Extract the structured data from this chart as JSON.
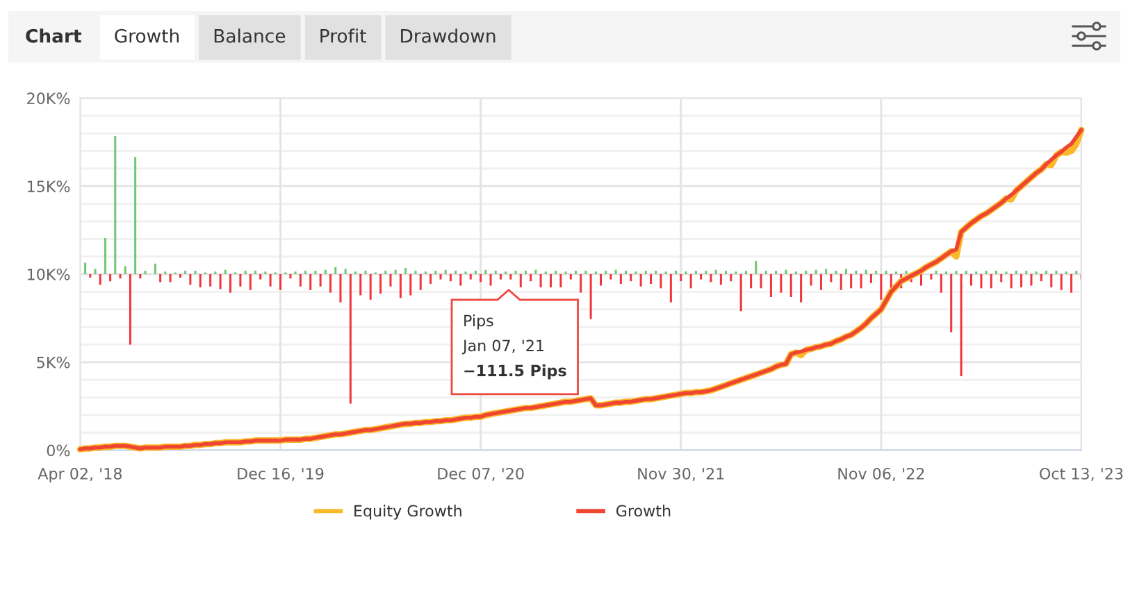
{
  "chart_data": {
    "type": "line",
    "categories": [
      "Apr 02, '18",
      null,
      null,
      null,
      null,
      null,
      null,
      null,
      null,
      null,
      null,
      null,
      null,
      null,
      null,
      null,
      null,
      null,
      null,
      null,
      null,
      null,
      null,
      null,
      null,
      null,
      null,
      null,
      null,
      null,
      null,
      null,
      null,
      null,
      null,
      null,
      null,
      null,
      null,
      null,
      "Dec 16, '19",
      null,
      null,
      null,
      null,
      null,
      null,
      null,
      null,
      null,
      null,
      null,
      null,
      null,
      null,
      null,
      null,
      null,
      null,
      null,
      null,
      null,
      null,
      null,
      null,
      null,
      null,
      null,
      null,
      null,
      null,
      null,
      null,
      null,
      null,
      null,
      null,
      null,
      null,
      null,
      "Dec 07, '20",
      null,
      null,
      null,
      null,
      null,
      null,
      null,
      null,
      null,
      null,
      null,
      null,
      null,
      null,
      null,
      null,
      null,
      null,
      null,
      null,
      null,
      null,
      null,
      null,
      null,
      null,
      null,
      null,
      null,
      null,
      null,
      null,
      null,
      null,
      null,
      null,
      null,
      null,
      null,
      "Nov 30, '21",
      null,
      null,
      null,
      null,
      null,
      null,
      null,
      null,
      null,
      null,
      null,
      null,
      null,
      null,
      null,
      null,
      null,
      null,
      null,
      null,
      null,
      null,
      null,
      null,
      null,
      null,
      null,
      null,
      null,
      null,
      null,
      null,
      null,
      null,
      null,
      null,
      null,
      null,
      null,
      "Nov 06, '22",
      null,
      null,
      null,
      null,
      null,
      null,
      null,
      null,
      null,
      null,
      null,
      null,
      null,
      null,
      null,
      null,
      null,
      null,
      null,
      null,
      null,
      null,
      null,
      null,
      null,
      null,
      null,
      null,
      null,
      null,
      null,
      null,
      null,
      null,
      null,
      null,
      null,
      null,
      null,
      "Oct 13, '23"
    ],
    "ylim": [
      0,
      20000
    ],
    "yticks": [
      {
        "value": 0,
        "label": "0%"
      },
      {
        "value": 1000,
        "label": null
      },
      {
        "value": 2000,
        "label": null
      },
      {
        "value": 3000,
        "label": null
      },
      {
        "value": 4000,
        "label": null
      },
      {
        "value": 5000,
        "label": "5K%"
      },
      {
        "value": 6000,
        "label": null
      },
      {
        "value": 7000,
        "label": null
      },
      {
        "value": 8000,
        "label": null
      },
      {
        "value": 9000,
        "label": null
      },
      {
        "value": 10000,
        "label": "10K%"
      },
      {
        "value": 11000,
        "label": null
      },
      {
        "value": 12000,
        "label": null
      },
      {
        "value": 13000,
        "label": null
      },
      {
        "value": 14000,
        "label": null
      },
      {
        "value": 15000,
        "label": "15K%"
      },
      {
        "value": 16000,
        "label": null
      },
      {
        "value": 17000,
        "label": null
      },
      {
        "value": 18000,
        "label": null
      },
      {
        "value": 19000,
        "label": null
      },
      {
        "value": 20000,
        "label": "20K%"
      }
    ],
    "grid": true,
    "legend": "bottom",
    "annotations": [
      "Chart",
      "Growth",
      "Balance",
      "Profit",
      "Drawdown",
      {
        "text": "Pips\nJan 07, '21\n−111.5 Pips",
        "y": 9100
      }
    ],
    "series": [
      {
        "name": "Equity Growth",
        "color": "#fbb829",
        "values": [
          50,
          100,
          100,
          150,
          150,
          200,
          200,
          250,
          250,
          250,
          200,
          150,
          100,
          150,
          150,
          150,
          150,
          200,
          200,
          200,
          200,
          250,
          250,
          300,
          300,
          350,
          350,
          400,
          400,
          450,
          450,
          450,
          450,
          500,
          500,
          550,
          550,
          550,
          550,
          550,
          550,
          600,
          600,
          600,
          600,
          650,
          650,
          700,
          750,
          800,
          850,
          900,
          900,
          950,
          1000,
          1050,
          1100,
          1150,
          1150,
          1200,
          1250,
          1300,
          1350,
          1400,
          1450,
          1500,
          1500,
          1550,
          1550,
          1600,
          1600,
          1650,
          1650,
          1700,
          1700,
          1750,
          1800,
          1850,
          1850,
          1900,
          1900,
          2000,
          2050,
          2100,
          2150,
          2200,
          2250,
          2300,
          2350,
          2400,
          2400,
          2450,
          2500,
          2550,
          2600,
          2650,
          2700,
          2750,
          2750,
          2800,
          2850,
          2900,
          2950,
          2550,
          2550,
          2600,
          2650,
          2700,
          2700,
          2750,
          2750,
          2800,
          2850,
          2900,
          2900,
          2950,
          3000,
          3050,
          3100,
          3150,
          3200,
          3250,
          3250,
          3300,
          3300,
          3350,
          3400,
          3500,
          3600,
          3700,
          3800,
          3900,
          4000,
          4100,
          4200,
          4300,
          4400,
          4500,
          4600,
          4750,
          4850,
          4900,
          5450,
          5550,
          5400,
          5700,
          5750,
          5850,
          5900,
          6000,
          6050,
          6200,
          6300,
          6450,
          6550,
          6750,
          6950,
          7200,
          7500,
          7750,
          8000,
          8500,
          9000,
          9300,
          9600,
          9750,
          9900,
          10050,
          10200,
          10400,
          10550,
          10700,
          10900,
          11100,
          11300,
          11000,
          12400,
          12650,
          12900,
          13100,
          13300,
          13450,
          13650,
          13850,
          14050,
          14300,
          14250,
          14750,
          15000,
          15250,
          15500,
          15750,
          15950,
          16250,
          16200,
          16750,
          16950,
          16900,
          17000,
          17400,
          18200
        ]
      },
      {
        "name": "Growth",
        "color": "#ef4631",
        "values": [
          50,
          100,
          100,
          150,
          150,
          200,
          200,
          250,
          250,
          250,
          200,
          150,
          100,
          150,
          150,
          150,
          150,
          200,
          200,
          200,
          200,
          250,
          250,
          300,
          300,
          350,
          350,
          400,
          400,
          450,
          450,
          450,
          450,
          500,
          500,
          550,
          550,
          550,
          550,
          550,
          550,
          600,
          600,
          600,
          600,
          650,
          650,
          700,
          750,
          800,
          850,
          900,
          900,
          950,
          1000,
          1050,
          1100,
          1150,
          1150,
          1200,
          1250,
          1300,
          1350,
          1400,
          1450,
          1500,
          1500,
          1550,
          1550,
          1600,
          1600,
          1650,
          1650,
          1700,
          1700,
          1750,
          1800,
          1850,
          1850,
          1900,
          1900,
          2000,
          2050,
          2100,
          2150,
          2200,
          2250,
          2300,
          2350,
          2400,
          2400,
          2450,
          2500,
          2550,
          2600,
          2650,
          2700,
          2750,
          2750,
          2800,
          2850,
          2900,
          2950,
          2550,
          2550,
          2600,
          2650,
          2700,
          2700,
          2750,
          2750,
          2800,
          2850,
          2900,
          2900,
          2950,
          3000,
          3050,
          3100,
          3150,
          3200,
          3250,
          3250,
          3300,
          3300,
          3350,
          3400,
          3500,
          3600,
          3700,
          3800,
          3900,
          4000,
          4100,
          4200,
          4300,
          4400,
          4500,
          4600,
          4750,
          4850,
          4900,
          5450,
          5550,
          5600,
          5700,
          5750,
          5850,
          5900,
          6000,
          6050,
          6200,
          6300,
          6450,
          6550,
          6750,
          6950,
          7200,
          7500,
          7750,
          8000,
          8500,
          9000,
          9300,
          9600,
          9750,
          9900,
          10050,
          10200,
          10400,
          10550,
          10700,
          10900,
          11100,
          11300,
          11400,
          12400,
          12650,
          12900,
          13100,
          13300,
          13450,
          13650,
          13850,
          14050,
          14300,
          14500,
          14750,
          15000,
          15250,
          15500,
          15750,
          15950,
          16250,
          16500,
          16750,
          16950,
          17200,
          17400,
          17800,
          18200
        ]
      },
      {
        "type": "bar",
        "base": [
          null,
          10000,
          10000,
          10000,
          10000,
          10000,
          10000,
          10000,
          10000,
          10000,
          10000,
          10000,
          10000,
          10000,
          null,
          10000,
          10000,
          10000,
          10000,
          10000,
          10000,
          10000,
          10000,
          10000,
          10000,
          10000,
          10000,
          10000,
          10000,
          10000,
          10000,
          10000,
          10000,
          10000,
          10000,
          10000,
          10000,
          10000,
          10000,
          10000,
          10000,
          10000,
          10000,
          10000,
          10000,
          10000,
          10000,
          10000,
          10000,
          10000,
          10000,
          10000,
          10000,
          10000,
          10000,
          10000,
          10000,
          10000,
          10000,
          10000,
          10000,
          10000,
          10000,
          10000,
          10000,
          10000,
          10000,
          10000,
          10000,
          10000,
          10000,
          10000,
          10000,
          10000,
          10000,
          10000,
          10000,
          10000,
          10000,
          10000,
          10000,
          10000,
          10000,
          10000,
          10000,
          10000,
          10000,
          10000,
          10000,
          10000,
          10000,
          10000,
          10000,
          10000,
          10000,
          10000,
          10000,
          10000,
          10000,
          10000,
          10000,
          10000,
          10000,
          10000,
          10000,
          10000,
          10000,
          10000,
          10000,
          10000,
          10000,
          10000,
          10000,
          10000,
          10000,
          10000,
          10000,
          10000,
          10000,
          10000,
          10000,
          10000,
          10000,
          10000,
          10000,
          10000,
          10000,
          10000,
          10000,
          10000,
          10000,
          10000,
          10000,
          10000,
          10000,
          10000,
          10000,
          10000,
          10000,
          10000,
          10000,
          10000,
          10000,
          10000,
          10000,
          10000,
          10000,
          10000,
          10000,
          10000,
          10000,
          10000,
          10000,
          10000,
          10000,
          10000,
          10000,
          10000,
          10000,
          10000,
          10000,
          10000,
          10000,
          10000,
          10000,
          10000,
          10000,
          null,
          10000,
          null,
          10000,
          10000,
          10000,
          10000,
          10000,
          10000,
          10000,
          10000,
          10000,
          10000,
          10000,
          10000,
          10000,
          10000,
          10000,
          10000,
          10000,
          10000,
          10000,
          10000,
          10000,
          10000,
          10000,
          10000,
          10000,
          10000,
          10000,
          10000,
          10000,
          10000,
          10000
        ],
        "values": [
          null,
          650,
          -200,
          300,
          -600,
          2050,
          -400,
          7850,
          -250,
          450,
          -4000,
          6650,
          -250,
          200,
          null,
          600,
          -450,
          150,
          -450,
          100,
          -200,
          200,
          -600,
          200,
          -750,
          100,
          -700,
          150,
          -850,
          250,
          -1050,
          100,
          -700,
          200,
          -900,
          200,
          -300,
          150,
          -700,
          100,
          -900,
          100,
          -250,
          150,
          -700,
          200,
          -900,
          200,
          -700,
          250,
          -1050,
          400,
          -1600,
          300,
          -7350,
          150,
          -1200,
          200,
          -1450,
          100,
          -1100,
          200,
          -700,
          250,
          -1350,
          350,
          -1200,
          200,
          -900,
          150,
          -550,
          200,
          -300,
          250,
          -400,
          200,
          -650,
          150,
          -300,
          200,
          -450,
          250,
          -650,
          200,
          -300,
          150,
          -300,
          200,
          -750,
          200,
          -400,
          250,
          -750,
          150,
          -750,
          200,
          -750,
          150,
          -300,
          200,
          -1050,
          200,
          -2550,
          150,
          -650,
          200,
          -300,
          250,
          -550,
          200,
          -400,
          150,
          -700,
          200,
          -550,
          200,
          -800,
          150,
          -1600,
          200,
          -400,
          150,
          -800,
          200,
          -300,
          200,
          -450,
          250,
          -600,
          200,
          -400,
          150,
          -2100,
          200,
          -800,
          750,
          -800,
          200,
          -1300,
          200,
          -1050,
          250,
          -1300,
          150,
          -1600,
          200,
          -650,
          250,
          -900,
          300,
          -450,
          200,
          -900,
          300,
          -800,
          200,
          -800,
          250,
          -500,
          200,
          -1450,
          200,
          -800,
          150,
          -800,
          200,
          -450,
          null,
          -650,
          null,
          -300,
          200,
          -1050,
          150,
          -3300,
          200,
          -5800,
          200,
          -650,
          150,
          -800,
          200,
          -800,
          200,
          -450,
          150,
          -800,
          200,
          -750,
          200,
          -650,
          150,
          -400,
          200,
          -750,
          200,
          -900,
          150,
          -1050,
          200,
          -300
        ],
        "colors": [
          null,
          "#72c572",
          "#f2353b",
          "#72c572",
          "#f2353b",
          "#72c572",
          "#f2353b",
          "#72c572",
          "#f2353b",
          "#72c572",
          "#f2353b",
          "#72c572",
          "#f2353b",
          "#72c572",
          null,
          "#72c572",
          "#f2353b",
          "#72c572",
          "#f2353b",
          "#72c572",
          "#f2353b",
          "#72c572",
          "#f2353b",
          "#72c572",
          "#f2353b",
          "#72c572",
          "#f2353b",
          "#72c572",
          "#f2353b",
          "#72c572",
          "#f2353b",
          "#72c572",
          "#f2353b",
          "#72c572",
          "#f2353b",
          "#72c572",
          "#f2353b",
          "#72c572",
          "#f2353b",
          "#72c572",
          "#f2353b",
          "#72c572",
          "#f2353b",
          "#72c572",
          "#f2353b",
          "#72c572",
          "#f2353b",
          "#72c572",
          "#f2353b",
          "#72c572",
          "#f2353b",
          "#72c572",
          "#f2353b",
          "#72c572",
          "#f2353b",
          "#72c572",
          "#f2353b",
          "#72c572",
          "#f2353b",
          "#72c572",
          "#f2353b",
          "#72c572",
          "#f2353b",
          "#72c572",
          "#f2353b",
          "#72c572",
          "#f2353b",
          "#72c572",
          "#f2353b",
          "#72c572",
          "#f2353b",
          "#72c572",
          "#f2353b",
          "#72c572",
          "#f2353b",
          "#72c572",
          "#f2353b",
          "#72c572",
          "#f2353b",
          "#72c572",
          "#f2353b",
          "#72c572",
          "#f2353b",
          "#72c572",
          "#f2353b",
          "#72c572",
          "#f2353b",
          "#72c572",
          "#f2353b",
          "#72c572",
          "#f2353b",
          "#72c572",
          "#f2353b",
          "#72c572",
          "#f2353b",
          "#72c572",
          "#f2353b",
          "#72c572",
          "#f2353b",
          "#72c572",
          "#f2353b",
          "#72c572",
          "#f2353b",
          "#72c572",
          "#f2353b",
          "#72c572",
          "#f2353b",
          "#72c572",
          "#f2353b",
          "#72c572",
          "#f2353b",
          "#72c572",
          "#f2353b",
          "#72c572",
          "#f2353b",
          "#72c572",
          "#f2353b",
          "#72c572",
          "#f2353b",
          "#72c572",
          "#f2353b",
          "#72c572",
          "#f2353b",
          "#72c572",
          "#f2353b",
          "#72c572",
          "#f2353b",
          "#72c572",
          "#f2353b",
          "#72c572",
          "#f2353b",
          "#72c572",
          "#f2353b",
          "#72c572",
          "#f2353b",
          "#72c572",
          "#f2353b",
          "#72c572",
          "#f2353b",
          "#72c572",
          "#f2353b",
          "#72c572",
          "#f2353b",
          "#72c572",
          "#f2353b",
          "#72c572",
          "#f2353b",
          "#72c572",
          "#f2353b",
          "#72c572",
          "#f2353b",
          "#72c572",
          "#f2353b",
          "#72c572",
          "#f2353b",
          "#72c572",
          "#f2353b",
          "#72c572",
          "#f2353b",
          "#72c572",
          "#f2353b",
          "#72c572",
          "#f2353b",
          "#72c572",
          "#f2353b",
          "#72c572",
          "#f2353b",
          null,
          "#f2353b",
          null,
          "#f2353b",
          "#72c572",
          "#f2353b",
          "#72c572",
          "#f2353b",
          "#72c572",
          "#f2353b",
          "#72c572",
          "#f2353b",
          "#72c572",
          "#f2353b",
          "#72c572",
          "#f2353b",
          "#72c572",
          "#f2353b",
          "#72c572",
          "#f2353b",
          "#72c572",
          "#f2353b",
          "#72c572",
          "#f2353b",
          "#72c572",
          "#f2353b",
          "#72c572",
          "#f2353b",
          "#72c572",
          "#f2353b",
          "#72c572",
          "#f2353b",
          "#72c572",
          "#f2353b"
        ]
      }
    ]
  }
}
